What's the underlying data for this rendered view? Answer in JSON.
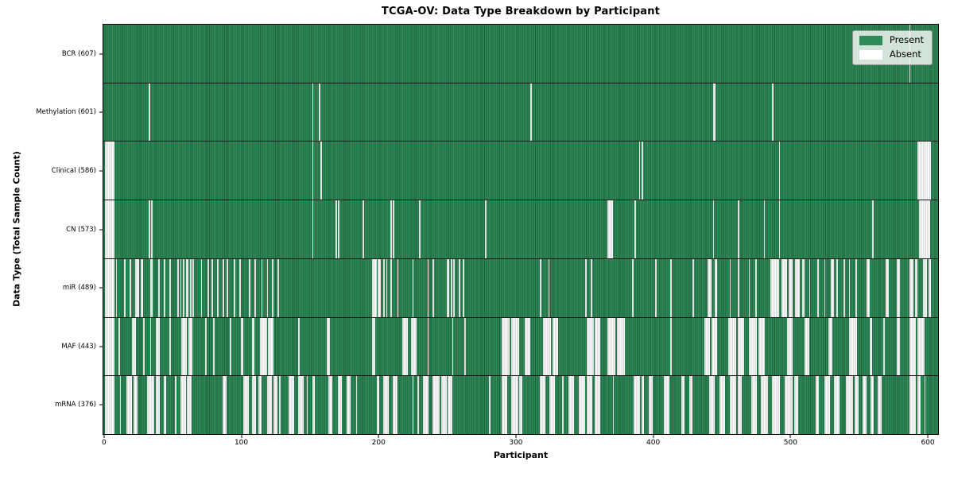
{
  "chart_data": {
    "type": "heatmap",
    "title": "TCGA-OV: Data Type Breakdown by Participant",
    "xlabel": "Participant",
    "ylabel": "Data Type (Total Sample Count)",
    "n_participants": 608,
    "xlim": [
      -0.5,
      607.5
    ],
    "x_ticks": [
      0,
      100,
      200,
      300,
      400,
      500,
      600
    ],
    "grid": false,
    "legend_position": "upper right",
    "legend": [
      {
        "label": "Present",
        "color": "#2e8b57"
      },
      {
        "label": "Absent",
        "color": "#ffffff"
      }
    ],
    "colors": {
      "present_fill": "#2e8b57",
      "present_edge": "#1f5f3e",
      "absent_fill": "#fbfbfb",
      "absent_edge": "#c6c6c6",
      "row_separator": "#161616",
      "axis": "#000000",
      "background": "#ffffff"
    },
    "rows": [
      {
        "label": "BCR (607)",
        "name": "BCR",
        "present_count": 607,
        "absent_ranges": [
          [
            587,
            1
          ]
        ]
      },
      {
        "label": "Methylation (601)",
        "name": "Methylation",
        "present_count": 601,
        "absent_ranges": [
          [
            33,
            1
          ],
          [
            152,
            1
          ],
          [
            157,
            1
          ],
          [
            311,
            1
          ],
          [
            444,
            2
          ],
          [
            487,
            1
          ]
        ]
      },
      {
        "label": "Clinical (586)",
        "name": "Clinical",
        "present_count": 586,
        "absent_ranges": [
          [
            1,
            7
          ],
          [
            152,
            1
          ],
          [
            158,
            1
          ],
          [
            390,
            1
          ],
          [
            392,
            1
          ],
          [
            492,
            1
          ],
          [
            593,
            10
          ]
        ]
      },
      {
        "label": "CN (573)",
        "name": "CN",
        "present_count": 573,
        "absent_ranges": [
          [
            1,
            7
          ],
          [
            33,
            1
          ],
          [
            35,
            1
          ],
          [
            152,
            1
          ],
          [
            169,
            1
          ],
          [
            171,
            1
          ],
          [
            189,
            1
          ],
          [
            209,
            1
          ],
          [
            211,
            1
          ],
          [
            230,
            1
          ],
          [
            278,
            1
          ],
          [
            367,
            4
          ],
          [
            387,
            1
          ],
          [
            444,
            1
          ],
          [
            462,
            1
          ],
          [
            481,
            1
          ],
          [
            492,
            1
          ],
          [
            560,
            1
          ],
          [
            594,
            8
          ]
        ]
      },
      {
        "label": "miR (489)",
        "name": "miR",
        "present_count": 489,
        "absent_ranges": [
          [
            1,
            7
          ],
          [
            9,
            1
          ],
          [
            15,
            1
          ],
          [
            19,
            1
          ],
          [
            23,
            3
          ],
          [
            27,
            2
          ],
          [
            34,
            2
          ],
          [
            40,
            1
          ],
          [
            44,
            1
          ],
          [
            48,
            1
          ],
          [
            54,
            1
          ],
          [
            56,
            1
          ],
          [
            58,
            1
          ],
          [
            60,
            2
          ],
          [
            63,
            1
          ],
          [
            65,
            1
          ],
          [
            71,
            1
          ],
          [
            76,
            1
          ],
          [
            79,
            1
          ],
          [
            83,
            1
          ],
          [
            87,
            1
          ],
          [
            90,
            1
          ],
          [
            95,
            1
          ],
          [
            99,
            1
          ],
          [
            106,
            1
          ],
          [
            110,
            1
          ],
          [
            115,
            1
          ],
          [
            119,
            1
          ],
          [
            123,
            1
          ],
          [
            127,
            1
          ],
          [
            196,
            3
          ],
          [
            200,
            2
          ],
          [
            204,
            1
          ],
          [
            206,
            1
          ],
          [
            209,
            1
          ],
          [
            214,
            1
          ],
          [
            225,
            1
          ],
          [
            236,
            1
          ],
          [
            240,
            1
          ],
          [
            250,
            2
          ],
          [
            253,
            1
          ],
          [
            255,
            1
          ],
          [
            259,
            1
          ],
          [
            262,
            1
          ],
          [
            318,
            1
          ],
          [
            324,
            1
          ],
          [
            351,
            1
          ],
          [
            355,
            1
          ],
          [
            385,
            1
          ],
          [
            402,
            1
          ],
          [
            413,
            1
          ],
          [
            429,
            1
          ],
          [
            440,
            3
          ],
          [
            445,
            2
          ],
          [
            456,
            1
          ],
          [
            462,
            1
          ],
          [
            470,
            1
          ],
          [
            475,
            1
          ],
          [
            486,
            6
          ],
          [
            494,
            4
          ],
          [
            499,
            3
          ],
          [
            504,
            3
          ],
          [
            509,
            2
          ],
          [
            514,
            1
          ],
          [
            520,
            1
          ],
          [
            525,
            1
          ],
          [
            530,
            2
          ],
          [
            534,
            1
          ],
          [
            539,
            1
          ],
          [
            543,
            1
          ],
          [
            548,
            1
          ],
          [
            556,
            2
          ],
          [
            570,
            2
          ],
          [
            578,
            2
          ],
          [
            587,
            3
          ],
          [
            591,
            2
          ],
          [
            597,
            3
          ],
          [
            601,
            2
          ]
        ]
      },
      {
        "label": "MAF (443)",
        "name": "MAF",
        "present_count": 443,
        "absent_ranges": [
          [
            1,
            7
          ],
          [
            11,
            1
          ],
          [
            21,
            3
          ],
          [
            29,
            1
          ],
          [
            34,
            1
          ],
          [
            38,
            3
          ],
          [
            48,
            1
          ],
          [
            57,
            4
          ],
          [
            62,
            3
          ],
          [
            74,
            1
          ],
          [
            80,
            1
          ],
          [
            92,
            1
          ],
          [
            100,
            2
          ],
          [
            108,
            2
          ],
          [
            114,
            5
          ],
          [
            120,
            4
          ],
          [
            142,
            1
          ],
          [
            163,
            2
          ],
          [
            196,
            2
          ],
          [
            218,
            4
          ],
          [
            224,
            4
          ],
          [
            236,
            1
          ],
          [
            254,
            1
          ],
          [
            263,
            1
          ],
          [
            290,
            6
          ],
          [
            297,
            6
          ],
          [
            307,
            4
          ],
          [
            320,
            6
          ],
          [
            327,
            4
          ],
          [
            352,
            5
          ],
          [
            358,
            4
          ],
          [
            367,
            6
          ],
          [
            374,
            6
          ],
          [
            413,
            1
          ],
          [
            438,
            4
          ],
          [
            443,
            4
          ],
          [
            455,
            6
          ],
          [
            462,
            5
          ],
          [
            470,
            6
          ],
          [
            477,
            5
          ],
          [
            498,
            4
          ],
          [
            511,
            3
          ],
          [
            528,
            3
          ],
          [
            543,
            6
          ],
          [
            558,
            2
          ],
          [
            568,
            1
          ],
          [
            578,
            2
          ],
          [
            587,
            5
          ],
          [
            593,
            5
          ]
        ]
      },
      {
        "label": "mRNA (376)",
        "name": "mRNA",
        "present_count": 376,
        "absent_ranges": [
          [
            1,
            7
          ],
          [
            12,
            1
          ],
          [
            17,
            4
          ],
          [
            22,
            3
          ],
          [
            32,
            5
          ],
          [
            38,
            3
          ],
          [
            44,
            2
          ],
          [
            52,
            1
          ],
          [
            56,
            4
          ],
          [
            61,
            3
          ],
          [
            87,
            3
          ],
          [
            102,
            4
          ],
          [
            108,
            3
          ],
          [
            113,
            2
          ],
          [
            119,
            4
          ],
          [
            124,
            3
          ],
          [
            128,
            1
          ],
          [
            135,
            4
          ],
          [
            142,
            4
          ],
          [
            148,
            1
          ],
          [
            152,
            2
          ],
          [
            164,
            3
          ],
          [
            171,
            3
          ],
          [
            177,
            3
          ],
          [
            184,
            1
          ],
          [
            199,
            2
          ],
          [
            204,
            4
          ],
          [
            211,
            3
          ],
          [
            225,
            1
          ],
          [
            229,
            1
          ],
          [
            233,
            4
          ],
          [
            240,
            5
          ],
          [
            246,
            4
          ],
          [
            251,
            3
          ],
          [
            281,
            1
          ],
          [
            290,
            4
          ],
          [
            297,
            5
          ],
          [
            303,
            2
          ],
          [
            318,
            4
          ],
          [
            325,
            4
          ],
          [
            334,
            1
          ],
          [
            339,
            4
          ],
          [
            346,
            5
          ],
          [
            352,
            4
          ],
          [
            358,
            4
          ],
          [
            371,
            1
          ],
          [
            386,
            5
          ],
          [
            392,
            2
          ],
          [
            397,
            3
          ],
          [
            408,
            4
          ],
          [
            421,
            2
          ],
          [
            427,
            2
          ],
          [
            441,
            4
          ],
          [
            449,
            4
          ],
          [
            456,
            5
          ],
          [
            462,
            3
          ],
          [
            472,
            4
          ],
          [
            479,
            5
          ],
          [
            487,
            6
          ],
          [
            496,
            6
          ],
          [
            503,
            3
          ],
          [
            519,
            2
          ],
          [
            525,
            4
          ],
          [
            532,
            4
          ],
          [
            541,
            5
          ],
          [
            547,
            3
          ],
          [
            553,
            3
          ],
          [
            559,
            2
          ],
          [
            564,
            3
          ],
          [
            587,
            5
          ],
          [
            593,
            2
          ],
          [
            598,
            1
          ]
        ]
      }
    ]
  }
}
